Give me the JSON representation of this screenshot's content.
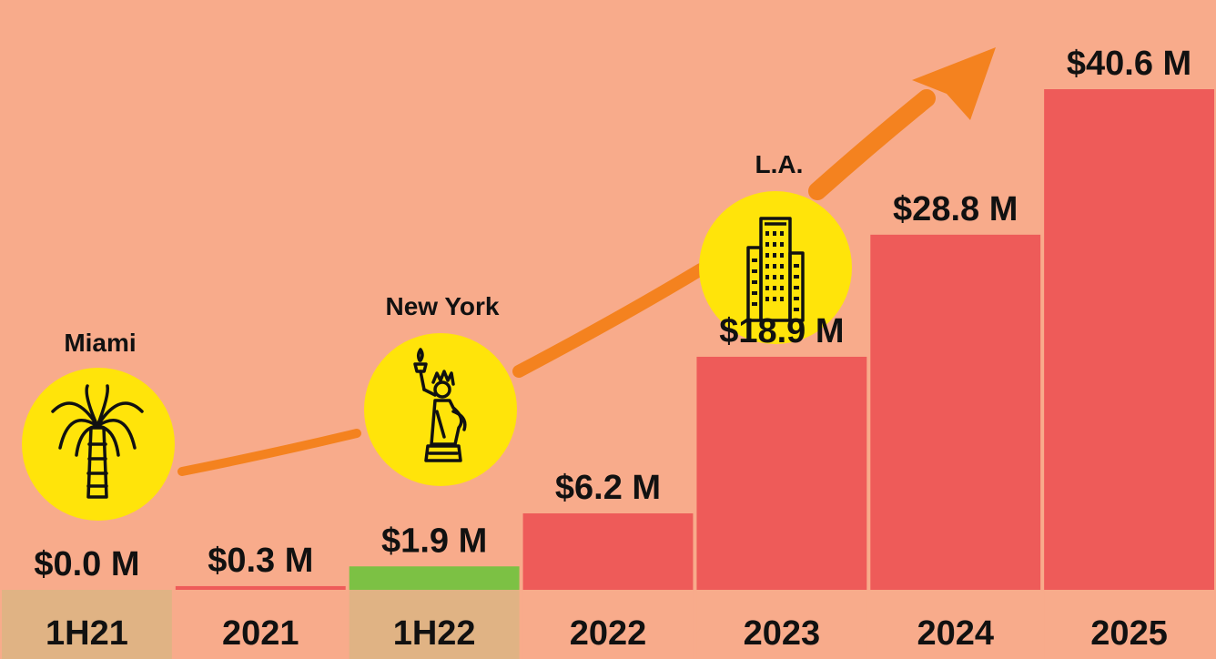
{
  "chart_data": {
    "type": "bar",
    "title": "",
    "xlabel": "",
    "ylabel": "",
    "ylim": [
      0,
      40.6
    ],
    "grid": false,
    "legend": "none",
    "categories": [
      "1H21",
      "2021",
      "1H22",
      "2022",
      "2023",
      "2024",
      "2025"
    ],
    "values": [
      0.0,
      0.3,
      1.9,
      6.2,
      18.9,
      28.8,
      40.6
    ],
    "value_labels": [
      "$0.0 M",
      "$0.3 M",
      "$1.9 M",
      "$6.2 M",
      "$18.9 M",
      "$28.8 M",
      "$40.6 M"
    ],
    "bar_colors": [
      "#ee5b59",
      "#ee5b59",
      "#7cc144",
      "#ee5b59",
      "#ee5b59",
      "#ee5b59",
      "#ee5b59"
    ],
    "category_band_colors": [
      "#e0b384",
      "#f8ab8b",
      "#e0b384",
      "#f8ab8b",
      "#f8ab8b",
      "#f8ab8b",
      "#f8ab8b"
    ],
    "annotations": [
      {
        "label": "Miami",
        "category": "1H21",
        "icon": "palm-tree-icon"
      },
      {
        "label": "New York",
        "category": "1H22",
        "icon": "statue-of-liberty-icon"
      },
      {
        "label": "L.A.",
        "category": "2023",
        "icon": "skyscraper-icon"
      }
    ]
  },
  "colors": {
    "background": "#f8ab8b",
    "arrow": "#f4821f",
    "icon_circle": "#ffe40a",
    "text": "#111111"
  }
}
